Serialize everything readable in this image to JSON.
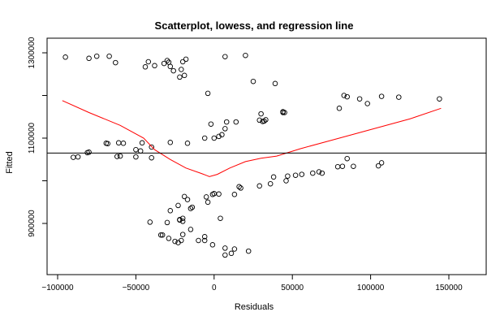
{
  "chart_data": {
    "type": "scatter",
    "title": "Scatterplot, lowess, and regression line",
    "xlabel": "Residuals",
    "ylabel": "Fitted",
    "xlim": [
      -100000,
      150000
    ],
    "ylim": [
      810000,
      1330000
    ],
    "x_ticks": [
      -100000,
      -50000,
      0,
      50000,
      100000,
      150000
    ],
    "x_tick_labels": [
      "−100000",
      "−50000",
      "0",
      "50000",
      "100000",
      "150000"
    ],
    "y_ticks": [
      900000,
      1000000,
      1100000,
      1200000,
      1300000
    ],
    "y_tick_labels": [
      "900000",
      "",
      "1100000",
      "",
      "1300000"
    ],
    "grid": false,
    "legend": "none",
    "colors": {
      "points": "#000000",
      "lowess": "#ff0000",
      "regression": "#000000"
    },
    "regression_line_y": 1065000,
    "series": [
      {
        "values": [
          [
            -95000,
            1290000
          ],
          [
            -80000,
            1287000
          ],
          [
            -75000,
            1292000
          ],
          [
            -67000,
            1292000
          ],
          [
            -63000,
            1277000
          ],
          [
            -44000,
            1267000
          ],
          [
            -42000,
            1279000
          ],
          [
            -38000,
            1270000
          ],
          [
            -32000,
            1275000
          ],
          [
            -30000,
            1282000
          ],
          [
            -29000,
            1278000
          ],
          [
            -28000,
            1268000
          ],
          [
            -26000,
            1258000
          ],
          [
            -22000,
            1243000
          ],
          [
            -21000,
            1261000
          ],
          [
            -20000,
            1279000
          ],
          [
            -18000,
            1285000
          ],
          [
            -19000,
            1247000
          ],
          [
            -4000,
            1205000
          ],
          [
            7000,
            1291000
          ],
          [
            20000,
            1294000
          ],
          [
            25000,
            1233000
          ],
          [
            39000,
            1228000
          ],
          [
            33000,
            1143000
          ],
          [
            44000,
            1162000
          ],
          [
            44000,
            1160000
          ],
          [
            45000,
            1160000
          ],
          [
            30000,
            1157000
          ],
          [
            32000,
            1140000
          ],
          [
            29000,
            1142000
          ],
          [
            31000,
            1139000
          ],
          [
            8000,
            1138000
          ],
          [
            14000,
            1138000
          ],
          [
            7000,
            1122000
          ],
          [
            5000,
            1108000
          ],
          [
            3000,
            1104000
          ],
          [
            0,
            1100000
          ],
          [
            -2000,
            1133000
          ],
          [
            -6000,
            1100000
          ],
          [
            -17000,
            1088000
          ],
          [
            -28000,
            1090000
          ],
          [
            -40000,
            1079000
          ],
          [
            -46000,
            1089000
          ],
          [
            -50000,
            1073000
          ],
          [
            -47000,
            1070000
          ],
          [
            -40000,
            1054000
          ],
          [
            -50000,
            1056000
          ],
          [
            -58000,
            1088000
          ],
          [
            -61000,
            1089000
          ],
          [
            -68000,
            1087000
          ],
          [
            -69000,
            1088000
          ],
          [
            -60000,
            1058000
          ],
          [
            -62000,
            1057000
          ],
          [
            -80000,
            1067000
          ],
          [
            -81000,
            1066000
          ],
          [
            -87000,
            1056000
          ],
          [
            -90000,
            1055000
          ],
          [
            80000,
            1170000
          ],
          [
            83000,
            1200000
          ],
          [
            85000,
            1197000
          ],
          [
            93000,
            1192000
          ],
          [
            98000,
            1181000
          ],
          [
            107000,
            1198000
          ],
          [
            118000,
            1196000
          ],
          [
            144000,
            1192000
          ],
          [
            79000,
            1033000
          ],
          [
            82000,
            1034000
          ],
          [
            85000,
            1052000
          ],
          [
            89000,
            1034000
          ],
          [
            105000,
            1035000
          ],
          [
            107000,
            1042000
          ],
          [
            67000,
            1021000
          ],
          [
            69000,
            1018000
          ],
          [
            63000,
            1018000
          ],
          [
            56000,
            1015000
          ],
          [
            52000,
            1013000
          ],
          [
            47000,
            1011000
          ],
          [
            46000,
            1000000
          ],
          [
            38000,
            1009000
          ],
          [
            36000,
            993000
          ],
          [
            29000,
            988000
          ],
          [
            17000,
            983000
          ],
          [
            16000,
            986000
          ],
          [
            13000,
            968000
          ],
          [
            3000,
            969000
          ],
          [
            0,
            970000
          ],
          [
            -1000,
            968000
          ],
          [
            -5000,
            962000
          ],
          [
            -4000,
            950000
          ],
          [
            -19000,
            963000
          ],
          [
            -17000,
            956000
          ],
          [
            -14000,
            938000
          ],
          [
            -15000,
            935000
          ],
          [
            -23000,
            942000
          ],
          [
            -22000,
            909000
          ],
          [
            -20000,
            912000
          ],
          [
            -22000,
            908000
          ],
          [
            -20000,
            905000
          ],
          [
            -28000,
            930000
          ],
          [
            -30000,
            902000
          ],
          [
            -33000,
            873000
          ],
          [
            -34000,
            873000
          ],
          [
            -29000,
            865000
          ],
          [
            -25000,
            858000
          ],
          [
            -23000,
            855000
          ],
          [
            -21000,
            860000
          ],
          [
            -20000,
            874000
          ],
          [
            -15000,
            886000
          ],
          [
            -10000,
            860000
          ],
          [
            -6000,
            869000
          ],
          [
            -6000,
            860000
          ],
          [
            -1000,
            850000
          ],
          [
            7000,
            842000
          ],
          [
            7000,
            826000
          ],
          [
            11000,
            830000
          ],
          [
            13000,
            840000
          ],
          [
            22000,
            835000
          ],
          [
            4000,
            912000
          ],
          [
            -41000,
            903000
          ]
        ]
      }
    ],
    "lowess": [
      [
        -97000,
        1188000
      ],
      [
        -80000,
        1160000
      ],
      [
        -60000,
        1130000
      ],
      [
        -45000,
        1100000
      ],
      [
        -38000,
        1073000
      ],
      [
        -28000,
        1050000
      ],
      [
        -18000,
        1030000
      ],
      [
        -8000,
        1017000
      ],
      [
        -3000,
        1010000
      ],
      [
        2000,
        1015000
      ],
      [
        10000,
        1030000
      ],
      [
        20000,
        1045000
      ],
      [
        30000,
        1053000
      ],
      [
        40000,
        1058000
      ],
      [
        55000,
        1075000
      ],
      [
        75000,
        1095000
      ],
      [
        100000,
        1120000
      ],
      [
        125000,
        1145000
      ],
      [
        145000,
        1170000
      ]
    ]
  }
}
